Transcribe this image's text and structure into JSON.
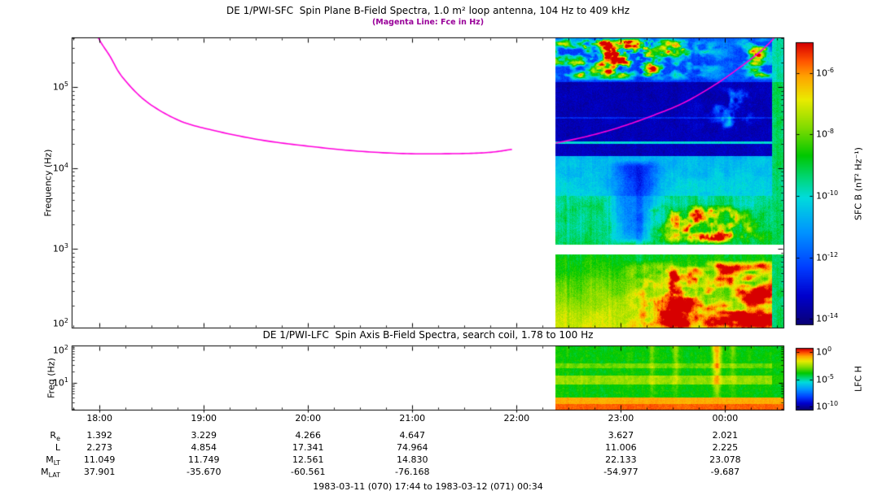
{
  "figure": {
    "caption": "1983-03-11 (070) 17:44 to 1983-03-12 (071) 00:34",
    "background": "#ffffff",
    "frame_color": "#000000",
    "magenta": "#ff00dd",
    "subtitle_color": "#990099"
  },
  "chart_data": [
    {
      "type": "heatmap",
      "id": "sfc",
      "title": "DE 1/PWI-SFC  Spin Plane B-Field Spectra, 1.0 m² loop antenna, 104 Hz to 409 kHz",
      "subtitle": "(Magenta Line: Fce in Hz)",
      "ylabel": "Frequency (Hz)",
      "ylog10_range": [
        2.017,
        5.612
      ],
      "ytick_exponents": [
        2,
        3,
        4,
        5
      ],
      "time_range_hours": [
        17.733,
        24.567
      ],
      "data_start_hour": 22.37,
      "receiver_gap_logf": [
        2.93,
        3.05
      ],
      "colorbar": {
        "title": "SFC B (nT² Hz⁻¹)",
        "tick_exponents": [
          -6,
          -8,
          -10,
          -12,
          -14
        ],
        "exp_range": [
          -5.0,
          -14.2
        ]
      },
      "fce_line_label": "Fce",
      "fce_segments_hour_hz": [
        [
          [
            17.9,
            700000
          ],
          [
            18.0,
            380000
          ],
          [
            18.1,
            240000
          ],
          [
            18.22,
            132000
          ],
          [
            18.45,
            66000
          ],
          [
            18.76,
            38700
          ],
          [
            19.08,
            29300
          ],
          [
            19.54,
            22200
          ],
          [
            20.01,
            18500
          ],
          [
            20.48,
            16100
          ],
          [
            20.95,
            15000
          ],
          [
            21.42,
            15000
          ],
          [
            21.73,
            15500
          ],
          [
            21.95,
            16900
          ]
        ],
        [
          [
            22.38,
            20300
          ],
          [
            22.67,
            24400
          ],
          [
            22.98,
            31500
          ],
          [
            23.29,
            43500
          ],
          [
            23.61,
            64400
          ],
          [
            23.92,
            110000
          ],
          [
            24.15,
            178000
          ],
          [
            24.35,
            283000
          ],
          [
            24.5,
            440000
          ]
        ]
      ],
      "texture_model": {
        "bands_logf": [
          {
            "lf0": 2.017,
            "lf1": 2.93,
            "u0": 0.78,
            "u1": 0.58,
            "stri": 0.13,
            "noi": 0.07
          },
          {
            "lf0": 3.05,
            "lf1": 3.65,
            "u0": 0.54,
            "u1": 0.5,
            "stri": 0.15,
            "noi": 0.1
          },
          {
            "lf0": 3.65,
            "lf1": 4.15,
            "u0": 0.44,
            "u1": 0.38,
            "stri": 0.07,
            "noi": 0.09
          },
          {
            "lf0": 4.15,
            "lf1": 5.06,
            "u0": 0.08,
            "u1": 0.07,
            "stri": 0.03,
            "noi": 0.05
          },
          {
            "lf0": 5.06,
            "lf1": 5.612,
            "u0": 0.2,
            "u1": 0.22,
            "stri": 0.06,
            "noi": 0.07
          }
        ],
        "hiss_line_logf": 4.31,
        "faint_line_logf": 4.62,
        "right_strip_hour": 24.45,
        "blobs": [
          {
            "hour": 22.95,
            "sigma": 0.55,
            "lf0": 5.07,
            "lf1": 5.62,
            "strength": 2.1,
            "threshold": 0.33,
            "scale": [
              0.055,
              0.095
            ]
          },
          {
            "hour": 23.0,
            "sigma": 0.45,
            "lf0": 5.3,
            "lf1": 5.62,
            "strength": 2.6,
            "threshold": 0.6,
            "scale": [
              0.11,
              0.14
            ]
          },
          {
            "hour": 24.33,
            "sigma": 0.1,
            "lf0": 5.07,
            "lf1": 5.62,
            "strength": 1.8,
            "threshold": 0.33,
            "scale": [
              0.055,
              0.095
            ]
          },
          {
            "hour": 24.05,
            "sigma": 0.12,
            "lf0": 4.45,
            "lf1": 5.0,
            "strength": 1.0,
            "threshold": 0.45,
            "scale": [
              0.075,
              0.075
            ]
          },
          {
            "hour": 23.82,
            "sigma": 0.28,
            "lf0": 3.05,
            "lf1": 3.55,
            "strength": 1.2,
            "threshold": 0.4,
            "scale": [
              0.075,
              0.075
            ],
            "flat": 0.1
          },
          {
            "hour": 24.02,
            "sigma": 0.42,
            "lf0": 2.0,
            "lf1": 2.86,
            "strength": 1.6,
            "threshold": 0.33,
            "scale": [
              0.028,
              0.05
            ]
          },
          {
            "hour": 23.45,
            "sigma": 0.18,
            "lf0": 2.0,
            "lf1": 2.8,
            "strength": 0.9,
            "threshold": 0.45,
            "scale": [
              0.075,
              0.075
            ]
          },
          {
            "hour": 23.15,
            "sigma": 0.14,
            "lf0": 3.05,
            "lf1": 4.1,
            "flat": -0.24
          }
        ]
      }
    },
    {
      "type": "heatmap",
      "id": "lfc",
      "title": "DE 1/PWI-LFC  Spin Axis B-Field Spectra, search coil, 1.78 to 100 Hz",
      "ylabel": "Freq (Hz)",
      "ylog10_range": [
        0.25,
        2.0
      ],
      "ytick_exponents": [
        1,
        2
      ],
      "time_range_hours": [
        17.733,
        24.567
      ],
      "data_start_hour": 22.37,
      "colorbar": {
        "title": "LFC H",
        "tick_exponents": [
          0,
          -5,
          -10
        ],
        "exp_range": [
          0.7,
          -10.7
        ]
      },
      "texture_model": {
        "bands_rel": [
          {
            "r0": 0.0,
            "r1": 0.27,
            "u": 0.6
          },
          {
            "r0": 0.27,
            "r1": 0.35,
            "u": 0.68
          },
          {
            "r0": 0.35,
            "r1": 0.46,
            "u": 0.6
          },
          {
            "r0": 0.46,
            "r1": 0.59,
            "u": 0.72
          },
          {
            "r0": 0.59,
            "r1": 0.79,
            "u": 0.6
          },
          {
            "r0": 0.79,
            "r1": 0.9,
            "u": 0.87
          },
          {
            "r0": 0.9,
            "r1": 1.0,
            "u": 0.93
          }
        ],
        "streaks": [
          {
            "hour": 23.92,
            "sigma": 0.03,
            "amp": 0.26
          },
          {
            "hour": 23.53,
            "sigma": 0.022,
            "amp": 0.12
          },
          {
            "hour": 24.07,
            "sigma": 0.02,
            "amp": 0.1
          },
          {
            "hour": 23.3,
            "sigma": 0.018,
            "amp": 0.08
          }
        ]
      }
    }
  ],
  "time_axis": {
    "tick_labels": [
      "18:00",
      "19:00",
      "20:00",
      "21:00",
      "22:00",
      "23:00",
      "00:00"
    ],
    "tick_hours": [
      18,
      19,
      20,
      21,
      22,
      23,
      24
    ]
  },
  "ephemeris": {
    "rows": [
      {
        "base": "R",
        "sub": "e",
        "values": [
          "1.392",
          "3.229",
          "4.266",
          "4.647",
          "",
          "3.627",
          "2.021"
        ]
      },
      {
        "base": "L",
        "sub": "",
        "values": [
          "2.273",
          "4.854",
          "17.341",
          "74.964",
          "",
          "11.006",
          "2.225"
        ]
      },
      {
        "base": "M",
        "sub": "LT",
        "values": [
          "11.049",
          "11.749",
          "12.561",
          "14.830",
          "",
          "22.133",
          "23.078"
        ]
      },
      {
        "base": "M",
        "sub": "LAT",
        "values": [
          "37.901",
          "-35.670",
          "-60.561",
          "-76.168",
          "",
          "-54.977",
          "-9.687"
        ]
      }
    ]
  }
}
